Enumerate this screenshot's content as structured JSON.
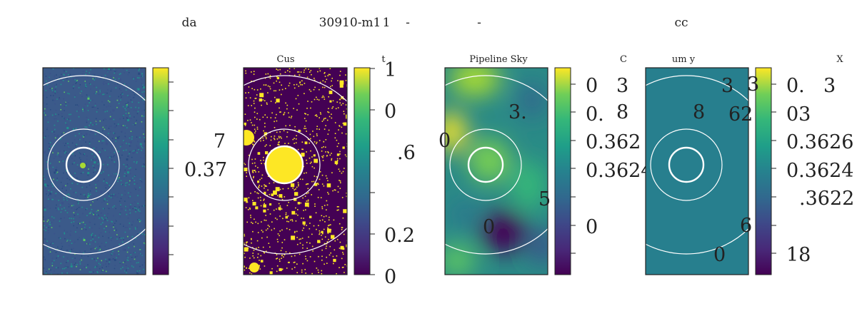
{
  "chart_data": [
    {
      "type": "heatmap",
      "title": "da",
      "subtitle": "",
      "colormap": "viridis",
      "pattern": "noise",
      "background": "#3b5a8a",
      "colorbar_labels": [
        "7",
        "0.37"
      ],
      "side_labels": []
    },
    {
      "type": "heatmap",
      "title": "30910-m1",
      "subtitle": "Cus",
      "colormap": "viridis",
      "pattern": "mask",
      "background": "#440154",
      "colorbar_labels": [
        "1",
        "0",
        ".6",
        "0.2",
        "0"
      ],
      "side_labels": [
        "t"
      ]
    },
    {
      "type": "heatmap",
      "title": "-",
      "subtitle": "Pipeline Sky",
      "colormap": "viridis",
      "pattern": "smooth",
      "background": "#2a8a86",
      "colorbar_labels": [
        "0",
        "0.",
        "0.362",
        "0.3624",
        "0"
      ],
      "side_labels": [
        "C",
        "3",
        "8",
        "3.",
        "0",
        "5",
        "0"
      ]
    },
    {
      "type": "heatmap",
      "title": "cc",
      "subtitle": "um y",
      "colormap": "viridis",
      "pattern": "flat",
      "background": "#277f8e",
      "colorbar_labels": [
        "0.",
        "03",
        "0.3626",
        "0.3624",
        ".3622",
        "18"
      ],
      "side_labels": [
        "X",
        "3",
        "3",
        "3",
        "8",
        "62",
        "6",
        "0"
      ]
    }
  ],
  "extra_titles": [
    "1",
    "-"
  ]
}
